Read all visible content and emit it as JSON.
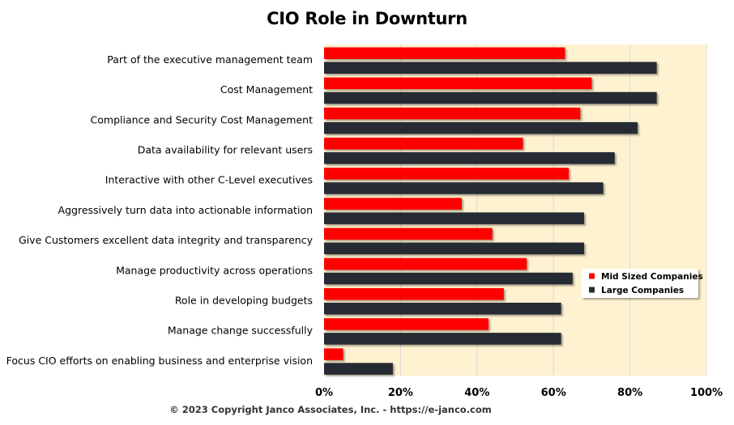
{
  "chart_data": {
    "type": "bar",
    "orientation": "horizontal",
    "title": "CIO Role in Downturn",
    "categories": [
      "Part of the executive management team",
      "Cost Management",
      "Compliance and Security Cost Management",
      "Data availability for relevant users",
      "Interactive with other C-Level executives",
      "Aggressively turn data into actionable information",
      "Give Customers excellent data integrity and transparency",
      "Manage productivity across operations",
      "Role in developing budgets",
      "Manage change successfully",
      "Focus CIO efforts on enabling business and enterprise vision"
    ],
    "series": [
      {
        "name": "Mid Sized Companies",
        "color": "#ff0000",
        "values": [
          63,
          70,
          67,
          52,
          64,
          36,
          44,
          53,
          47,
          43,
          5
        ]
      },
      {
        "name": "Large Companies",
        "color": "#262a33",
        "values": [
          87,
          87,
          82,
          76,
          73,
          68,
          68,
          65,
          62,
          62,
          18
        ]
      }
    ],
    "xlim": [
      0,
      100
    ],
    "xticks": [
      "0%",
      "20%",
      "40%",
      "60%",
      "80%",
      "100%"
    ],
    "xtick_values": [
      0,
      20,
      40,
      60,
      80,
      100
    ],
    "grid": true,
    "plot_background": "#fff2d0",
    "legend_position": "right",
    "copyright": "© 2023 Copyright Janco Associates, Inc. - https://e-janco.com"
  }
}
